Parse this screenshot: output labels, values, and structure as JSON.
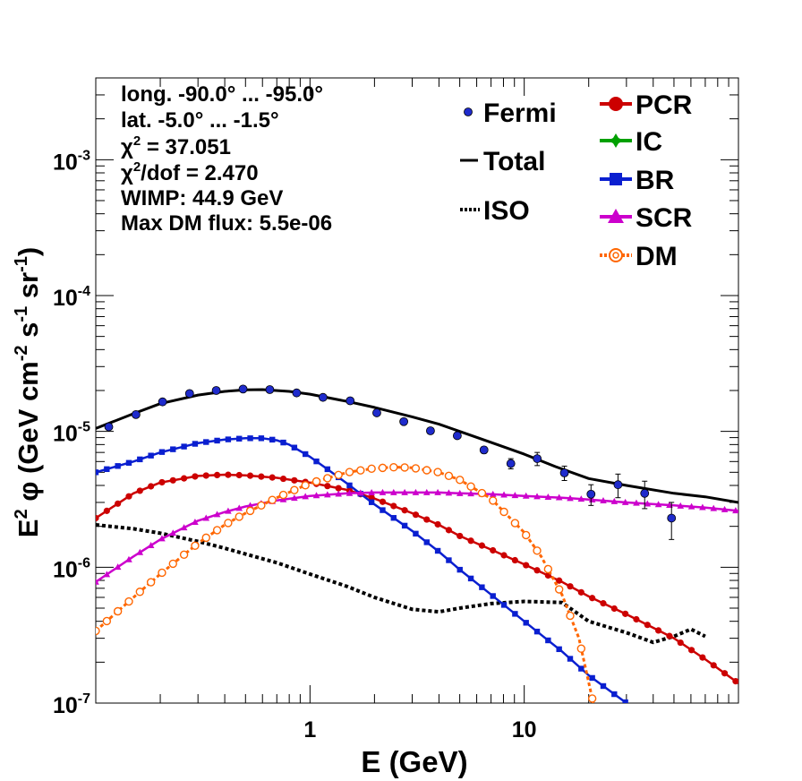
{
  "chart_data": {
    "type": "line",
    "xscale": "log",
    "yscale": "log",
    "xlim": [
      0.1,
      100
    ],
    "ylim": [
      1e-07,
      0.004
    ],
    "xlabel": "E (GeV)",
    "ylabel": {
      "e": "E",
      "e_sup": "2",
      "phi": " φ (GeV cm",
      "cm_sup": "-2",
      "s": " s",
      "s_sup": "-1",
      "sr": " sr",
      "sr_sup": "-1",
      "close": ")"
    },
    "xticks": [
      {
        "value": 1,
        "label": "1"
      },
      {
        "value": 10,
        "label": "10"
      }
    ],
    "yticks": [
      {
        "value": 1e-07,
        "base": "10",
        "exp": "-7"
      },
      {
        "value": 1e-06,
        "base": "10",
        "exp": "-6"
      },
      {
        "value": 1e-05,
        "base": "10",
        "exp": "-5"
      },
      {
        "value": 0.0001,
        "base": "10",
        "exp": "-4"
      },
      {
        "value": 0.001,
        "base": "10",
        "exp": "-3"
      }
    ],
    "info": {
      "longitude": "long. -90.0° ... -95.0°",
      "latitude": "lat. -5.0° ... -1.5°",
      "chi2": {
        "sym": "χ",
        "sup": "2",
        "rest": " = 37.051"
      },
      "chi2dof": {
        "sym": "χ",
        "sup": "2",
        "rest": "/dof = 2.470"
      },
      "wimp": "WIMP: 44.9 GeV",
      "max_dm_flux": "Max DM flux: 5.5e-06"
    },
    "legend": {
      "fermi": "Fermi",
      "total": "Total",
      "iso": "ISO",
      "pcr": "PCR",
      "ic": "IC",
      "br": "BR",
      "scr": "SCR",
      "dm": "DM"
    },
    "colors": {
      "fermi": "#1f2bcc",
      "total": "#000000",
      "iso": "#000000",
      "pcr": "#cc0000",
      "ic": "#00a000",
      "br": "#0a1fd0",
      "scr": "#cc00cc",
      "dm": "#ff6600"
    },
    "fermi": [
      {
        "x": 0.115,
        "y": 1.08e-05,
        "err": 5e-07
      },
      {
        "x": 0.154,
        "y": 1.33e-05,
        "err": 5e-07
      },
      {
        "x": 0.205,
        "y": 1.65e-05,
        "err": 5e-07
      },
      {
        "x": 0.274,
        "y": 1.9e-05,
        "err": 5e-07
      },
      {
        "x": 0.365,
        "y": 2e-05,
        "err": 5e-07
      },
      {
        "x": 0.487,
        "y": 2.05e-05,
        "err": 5e-07
      },
      {
        "x": 0.649,
        "y": 2.03e-05,
        "err": 5e-07
      },
      {
        "x": 0.866,
        "y": 1.92e-05,
        "err": 5e-07
      },
      {
        "x": 1.15,
        "y": 1.78e-05,
        "err": 5e-07
      },
      {
        "x": 1.54,
        "y": 1.68e-05,
        "err": 5e-07
      },
      {
        "x": 2.05,
        "y": 1.37e-05,
        "err": 5e-07
      },
      {
        "x": 2.74,
        "y": 1.18e-05,
        "err": 5e-07
      },
      {
        "x": 3.65,
        "y": 1.01e-05,
        "err": 5e-07
      },
      {
        "x": 4.87,
        "y": 9.3e-06,
        "err": 4e-07
      },
      {
        "x": 6.49,
        "y": 7.3e-06,
        "err": 4e-07
      },
      {
        "x": 8.66,
        "y": 5.8e-06,
        "err": 5e-07
      },
      {
        "x": 11.5,
        "y": 6.3e-06,
        "err": 7e-07
      },
      {
        "x": 15.4,
        "y": 4.95e-06,
        "err": 6e-07
      },
      {
        "x": 20.5,
        "y": 3.45e-06,
        "err": 6e-07
      },
      {
        "x": 27.4,
        "y": 4.05e-06,
        "err": 8e-07
      },
      {
        "x": 36.5,
        "y": 3.5e-06,
        "err": 8e-07
      },
      {
        "x": 48.7,
        "y": 2.3e-06,
        "err": 7e-07
      }
    ],
    "series": [
      {
        "name": "Total",
        "key": "total",
        "marker": "none",
        "dash": "",
        "width": 3,
        "x": [
          0.1,
          0.15,
          0.2,
          0.3,
          0.4,
          0.5,
          0.6,
          0.8,
          1,
          1.5,
          2,
          3,
          4,
          5,
          7,
          10,
          14,
          20,
          30,
          50,
          70,
          100
        ],
        "y": [
          1.05e-05,
          1.35e-05,
          1.6e-05,
          1.85e-05,
          1.97e-05,
          2.02e-05,
          2.03e-05,
          1.97e-05,
          1.88e-05,
          1.66e-05,
          1.5e-05,
          1.28e-05,
          1.13e-05,
          1e-05,
          8.3e-06,
          6.8e-06,
          5.5e-06,
          4.5e-06,
          4e-06,
          3.5e-06,
          3.3e-06,
          3e-06
        ]
      },
      {
        "name": "ISO",
        "key": "iso",
        "marker": "none",
        "dash": "4 3",
        "width": 4,
        "x": [
          0.1,
          0.15,
          0.2,
          0.3,
          0.4,
          0.5,
          0.7,
          1,
          1.5,
          2,
          3,
          4,
          5,
          7,
          10,
          15,
          20,
          30,
          40,
          50,
          60,
          70
        ],
        "y": [
          2.05e-06,
          1.92e-06,
          1.78e-06,
          1.55e-06,
          1.38e-06,
          1.25e-06,
          1.08e-06,
          8.9e-07,
          7.2e-07,
          6e-07,
          4.9e-07,
          4.7e-07,
          5e-07,
          5.4e-07,
          5.6e-07,
          5.5e-07,
          4e-07,
          3.3e-07,
          2.8e-07,
          3.1e-07,
          3.5e-07,
          3.1e-07
        ]
      },
      {
        "name": "PCR",
        "key": "pcr",
        "marker": "circle",
        "dash": "",
        "width": 2.5,
        "x": [
          0.1,
          0.15,
          0.2,
          0.3,
          0.4,
          0.5,
          0.7,
          1,
          1.5,
          2,
          3,
          4,
          5,
          7,
          10,
          15,
          20,
          30,
          50,
          70,
          100
        ],
        "y": [
          2.3e-06,
          3.5e-06,
          4.2e-06,
          4.7e-06,
          4.8e-06,
          4.75e-06,
          4.55e-06,
          4.2e-06,
          3.7e-06,
          3.2e-06,
          2.5e-06,
          2.05e-06,
          1.7e-06,
          1.35e-06,
          1.05e-06,
          7.8e-07,
          6.1e-07,
          4.5e-07,
          3e-07,
          2.1e-07,
          1.4e-07
        ]
      },
      {
        "name": "BR",
        "key": "br",
        "marker": "square",
        "dash": "",
        "width": 2.5,
        "x": [
          0.1,
          0.15,
          0.2,
          0.3,
          0.4,
          0.5,
          0.6,
          0.7,
          0.8,
          1,
          1.2,
          1.5,
          2,
          3,
          4,
          5,
          7,
          10,
          15,
          20,
          30
        ],
        "y": [
          5e-06,
          6e-06,
          7e-06,
          8.2e-06,
          8.7e-06,
          8.9e-06,
          8.9e-06,
          8.6e-06,
          8e-06,
          6.5e-06,
          5.3e-06,
          4.1e-06,
          2.9e-06,
          1.85e-06,
          1.3e-06,
          9.6e-07,
          6.3e-07,
          4e-07,
          2.4e-07,
          1.6e-07,
          1e-07
        ]
      },
      {
        "name": "SCR",
        "key": "scr",
        "marker": "triangle",
        "dash": "",
        "width": 2.5,
        "x": [
          0.1,
          0.15,
          0.2,
          0.3,
          0.4,
          0.5,
          0.7,
          1,
          1.5,
          2,
          3,
          4,
          5,
          7,
          10,
          15,
          20,
          30,
          50,
          70,
          100
        ],
        "y": [
          7.8e-07,
          1.2e-06,
          1.6e-06,
          2.2e-06,
          2.55e-06,
          2.8e-06,
          3.1e-06,
          3.35e-06,
          3.5e-06,
          3.55e-06,
          3.55e-06,
          3.55e-06,
          3.5e-06,
          3.45e-06,
          3.35e-06,
          3.25e-06,
          3.15e-06,
          3e-06,
          2.85e-06,
          2.75e-06,
          2.6e-06
        ]
      },
      {
        "name": "DM",
        "key": "dm",
        "marker": "ocircle",
        "dash": "4 3",
        "width": 3,
        "x": [
          0.1,
          0.15,
          0.2,
          0.3,
          0.4,
          0.5,
          0.7,
          1,
          1.5,
          2,
          2.5,
          3,
          4,
          5,
          7,
          10,
          12,
          15,
          18,
          21
        ],
        "y": [
          3.4e-07,
          6e-07,
          8.9e-07,
          1.5e-06,
          2.05e-06,
          2.5e-06,
          3.25e-06,
          4.15e-06,
          5e-06,
          5.35e-06,
          5.45e-06,
          5.4e-06,
          5e-06,
          4.4e-06,
          3.2e-06,
          1.8e-06,
          1.2e-06,
          6.3e-07,
          3e-07,
          1e-07
        ]
      }
    ]
  }
}
